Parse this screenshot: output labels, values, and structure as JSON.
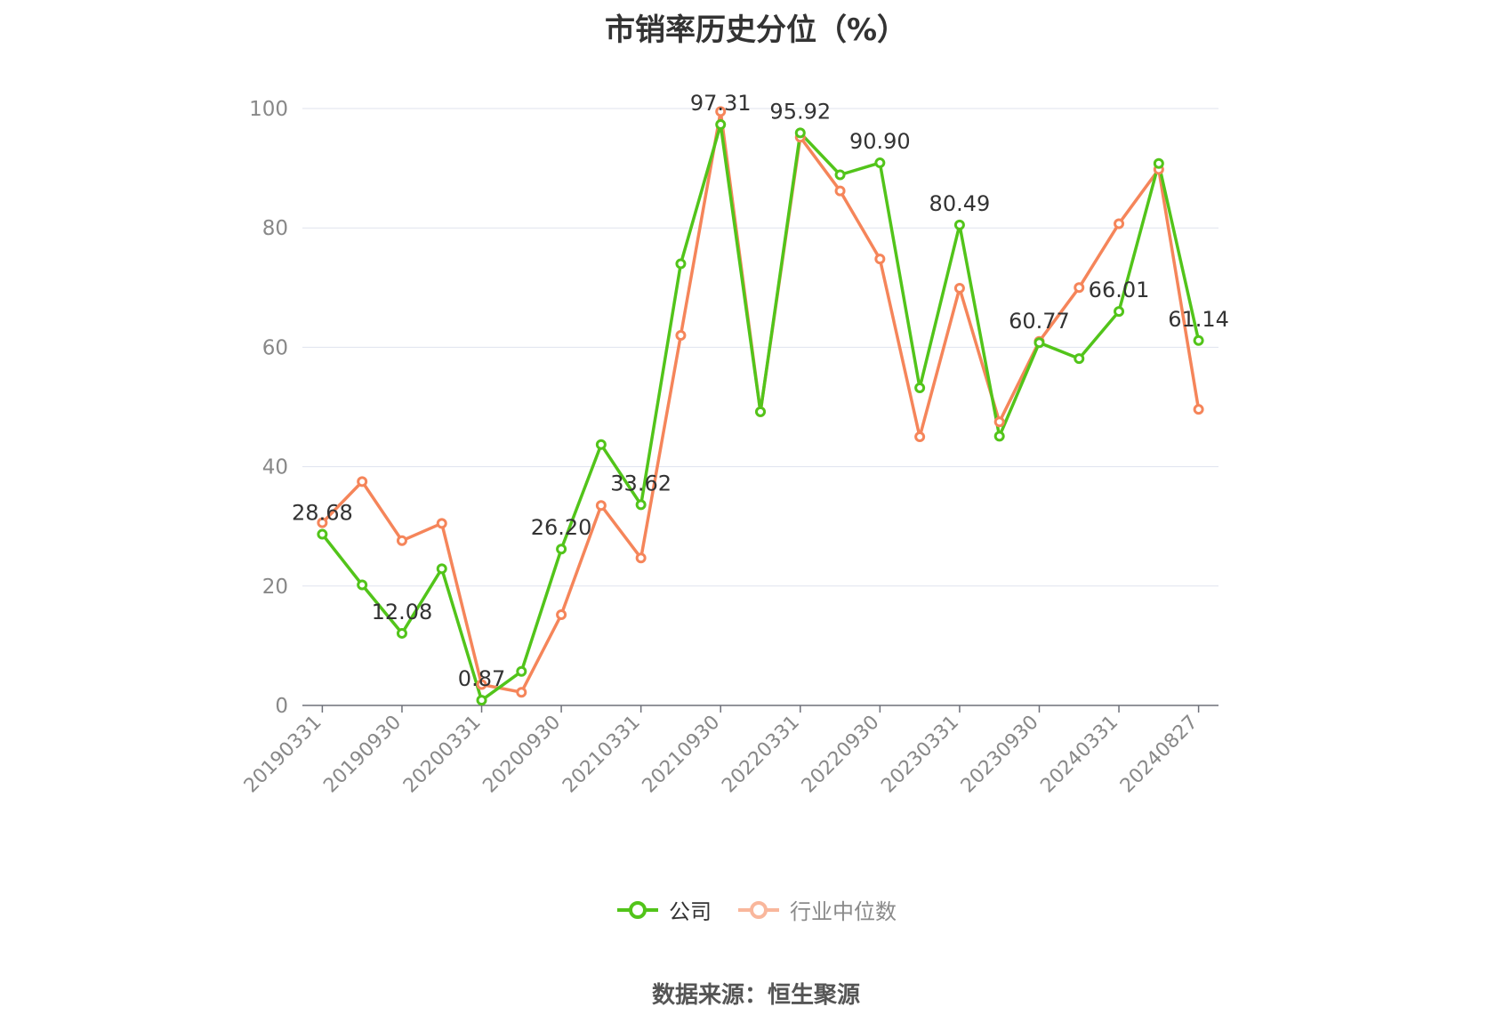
{
  "chart_data": {
    "type": "line",
    "title": "市销率历史分位（%）",
    "xlabel": "",
    "ylabel": "",
    "ylim": [
      0,
      100
    ],
    "yticks": [
      0,
      20,
      40,
      60,
      80,
      100
    ],
    "grid": true,
    "legend_position": "bottom",
    "categories": [
      "20190331",
      "20190630",
      "20190930",
      "20191231",
      "20200331",
      "20200630",
      "20200930",
      "20201231",
      "20210331",
      "20210630",
      "20210930",
      "20211231",
      "20220331",
      "20220630",
      "20220930",
      "20221231",
      "20230331",
      "20230630",
      "20230930",
      "20231231",
      "20240331",
      "20240630",
      "20240827"
    ],
    "xtick_labels": [
      "20190331",
      "20190930",
      "20200331",
      "20200930",
      "20210331",
      "20210930",
      "20220331",
      "20220930",
      "20230331",
      "20230930",
      "20240331",
      "20240827"
    ],
    "series": [
      {
        "name": "公司",
        "color": "#52c41a",
        "values": [
          28.68,
          20.2,
          12.08,
          22.9,
          0.87,
          5.7,
          26.2,
          43.7,
          33.62,
          74.0,
          97.31,
          49.2,
          95.92,
          88.9,
          90.9,
          53.2,
          80.49,
          45.1,
          60.77,
          58.1,
          66.01,
          90.8,
          61.14
        ],
        "labels": [
          "28.68",
          "",
          "12.08",
          "",
          "0.87",
          "",
          "26.20",
          "",
          "33.62",
          "",
          "97.31",
          "",
          "95.92",
          "",
          "90.90",
          "",
          "80.49",
          "",
          "60.77",
          "",
          "66.01",
          "",
          "61.14"
        ]
      },
      {
        "name": "行业中位数",
        "color": "#f5855a",
        "values": [
          30.6,
          37.5,
          27.6,
          30.5,
          3.5,
          2.2,
          15.2,
          33.5,
          24.7,
          62.0,
          99.5,
          49.2,
          95.2,
          86.2,
          74.8,
          45.0,
          69.9,
          47.5,
          61.0,
          70.0,
          80.7,
          89.8,
          49.6
        ]
      }
    ]
  },
  "source": "数据来源：恒生聚源"
}
